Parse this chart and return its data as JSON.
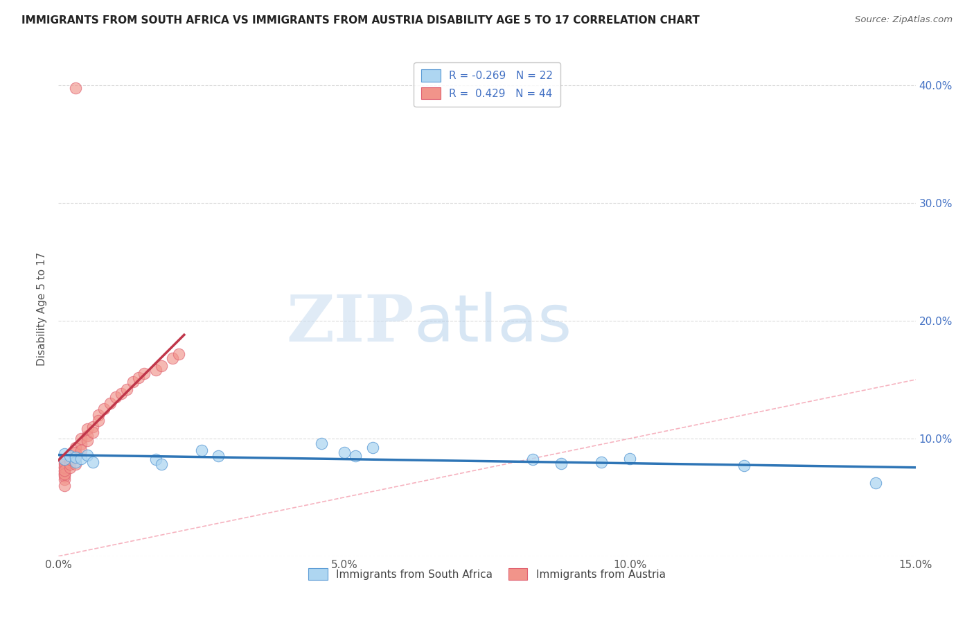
{
  "title": "IMMIGRANTS FROM SOUTH AFRICA VS IMMIGRANTS FROM AUSTRIA DISABILITY AGE 5 TO 17 CORRELATION CHART",
  "source": "Source: ZipAtlas.com",
  "ylabel": "Disability Age 5 to 17",
  "xlim": [
    0.0,
    0.15
  ],
  "ylim": [
    0.0,
    0.42
  ],
  "xticks": [
    0.0,
    0.05,
    0.1,
    0.15
  ],
  "xticklabels": [
    "0.0%",
    "5.0%",
    "10.0%",
    "15.0%"
  ],
  "yticks": [
    0.0,
    0.1,
    0.2,
    0.3,
    0.4
  ],
  "yticklabels_right": [
    "",
    "10.0%",
    "20.0%",
    "30.0%",
    "40.0%"
  ],
  "r_south_africa": -0.269,
  "n_south_africa": 22,
  "r_austria": 0.429,
  "n_austria": 44,
  "color_south_africa_fill": "#AED6F1",
  "color_south_africa_edge": "#5B9BD5",
  "color_austria_fill": "#F1948A",
  "color_austria_edge": "#E06070",
  "color_trend_south_africa": "#2E75B6",
  "color_trend_austria": "#C0364A",
  "color_diagonal": "#F4A0B0",
  "legend_label_south_africa": "Immigrants from South Africa",
  "legend_label_austria": "Immigrants from Austria",
  "sa_x": [
    0.001,
    0.001,
    0.002,
    0.003,
    0.003,
    0.004,
    0.005,
    0.006,
    0.017,
    0.018,
    0.025,
    0.028,
    0.046,
    0.05,
    0.052,
    0.055,
    0.083,
    0.088,
    0.095,
    0.1,
    0.12,
    0.143
  ],
  "sa_y": [
    0.087,
    0.082,
    0.085,
    0.08,
    0.084,
    0.083,
    0.086,
    0.08,
    0.082,
    0.078,
    0.09,
    0.085,
    0.096,
    0.088,
    0.085,
    0.092,
    0.082,
    0.079,
    0.08,
    0.083,
    0.077,
    0.062
  ],
  "at_x": [
    0.001,
    0.001,
    0.001,
    0.001,
    0.001,
    0.001,
    0.001,
    0.001,
    0.001,
    0.001,
    0.001,
    0.001,
    0.002,
    0.002,
    0.002,
    0.002,
    0.002,
    0.003,
    0.003,
    0.003,
    0.003,
    0.004,
    0.004,
    0.004,
    0.005,
    0.005,
    0.005,
    0.006,
    0.006,
    0.007,
    0.007,
    0.008,
    0.009,
    0.01,
    0.011,
    0.012,
    0.013,
    0.014,
    0.015,
    0.017,
    0.018,
    0.02,
    0.021,
    0.003
  ],
  "at_y": [
    0.065,
    0.07,
    0.072,
    0.068,
    0.075,
    0.06,
    0.078,
    0.082,
    0.08,
    0.076,
    0.07,
    0.073,
    0.08,
    0.075,
    0.078,
    0.082,
    0.085,
    0.085,
    0.092,
    0.088,
    0.078,
    0.095,
    0.1,
    0.09,
    0.102,
    0.108,
    0.098,
    0.11,
    0.105,
    0.12,
    0.115,
    0.125,
    0.13,
    0.135,
    0.138,
    0.142,
    0.148,
    0.152,
    0.155,
    0.158,
    0.162,
    0.168,
    0.172,
    0.398
  ],
  "watermark_zip": "ZIP",
  "watermark_atlas": "atlas",
  "background_color": "#FFFFFF",
  "grid_color": "#CCCCCC"
}
